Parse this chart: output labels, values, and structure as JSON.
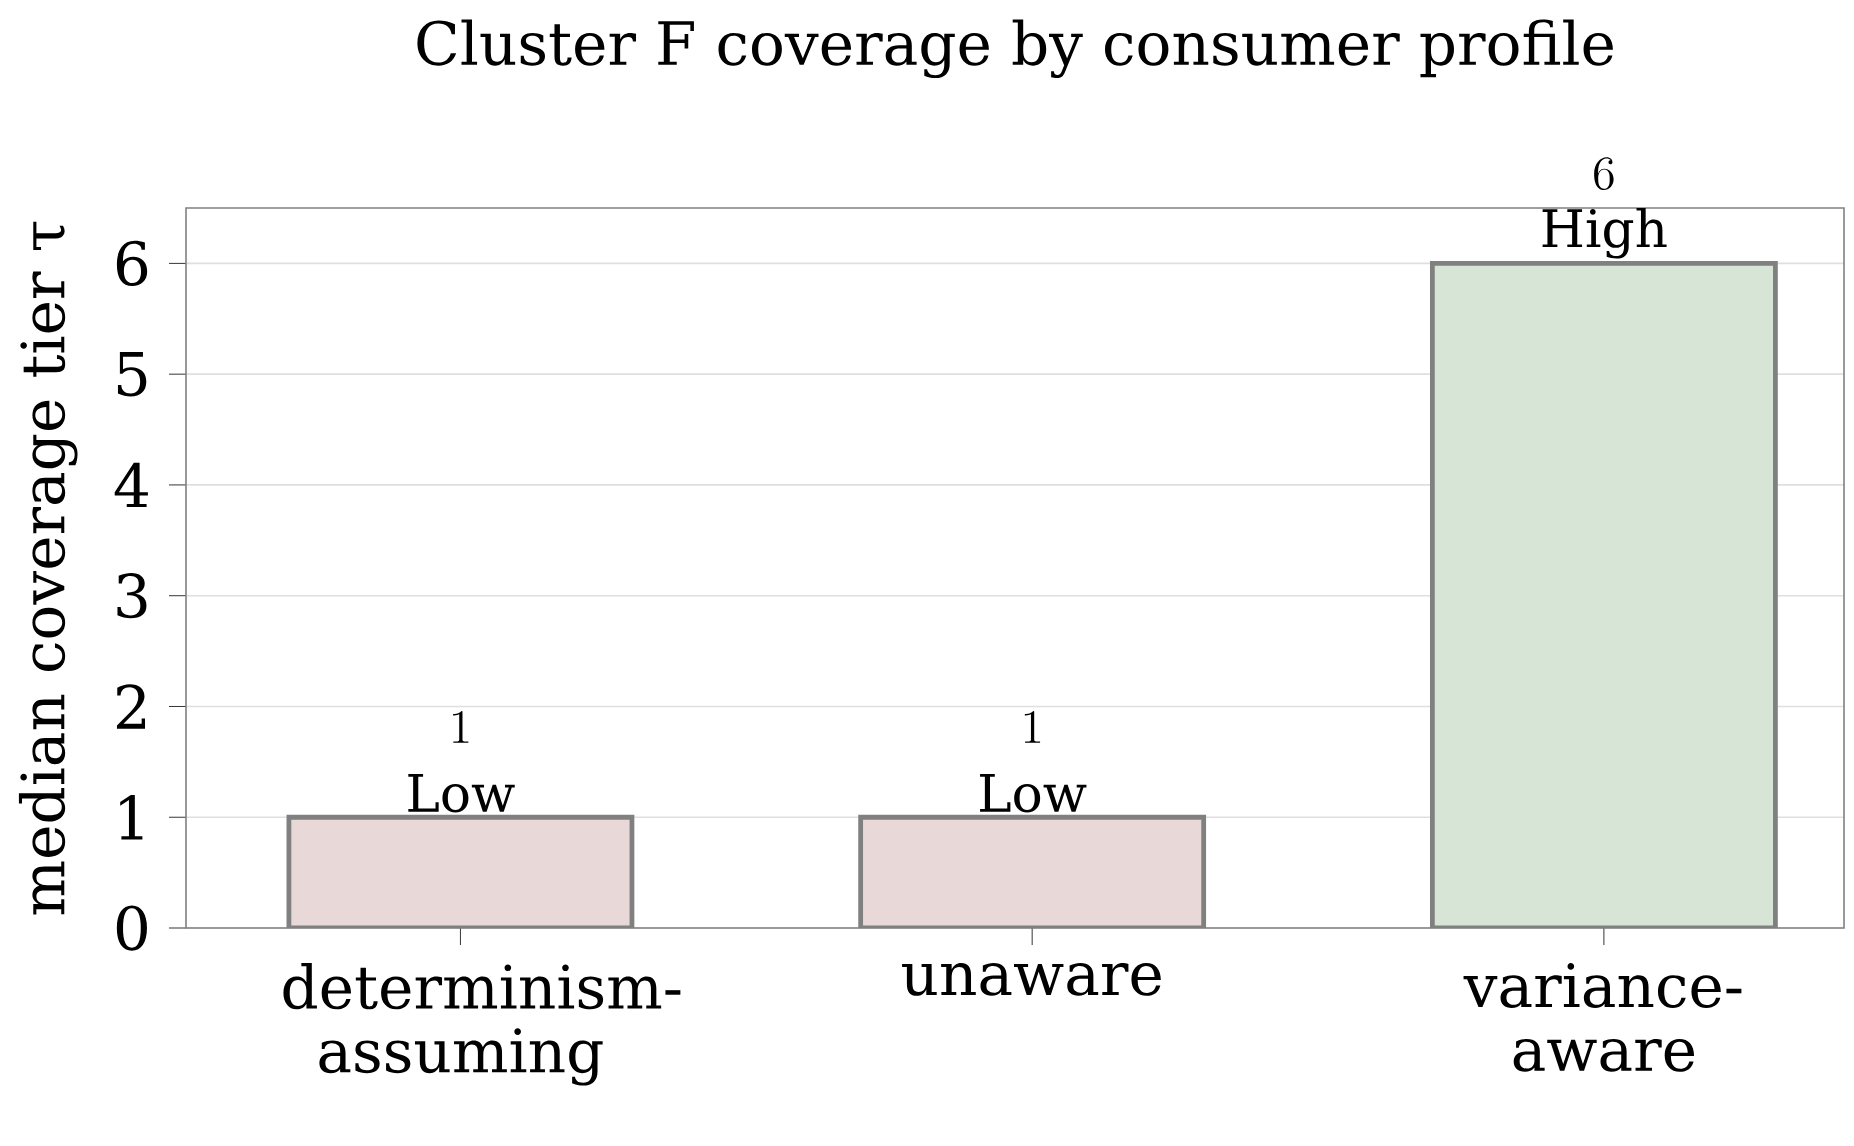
{
  "chart_data": {
    "type": "bar",
    "title": "Cluster F coverage by consumer profile",
    "ylabel": "median coverage tier τ",
    "categories": [
      "determinism-assuming",
      "unaware",
      "variance-aware"
    ],
    "values": [
      1,
      1,
      6
    ],
    "colors": [
      "#e8d8d8",
      "#e8d8d8",
      "#d6e5d6"
    ],
    "ylim": [
      0,
      6.5
    ],
    "yticks": [
      0,
      1,
      2,
      3,
      4,
      5,
      6
    ],
    "grid": "y",
    "data_labels": true,
    "annotations": [
      "Low",
      "Low",
      "High"
    ]
  }
}
